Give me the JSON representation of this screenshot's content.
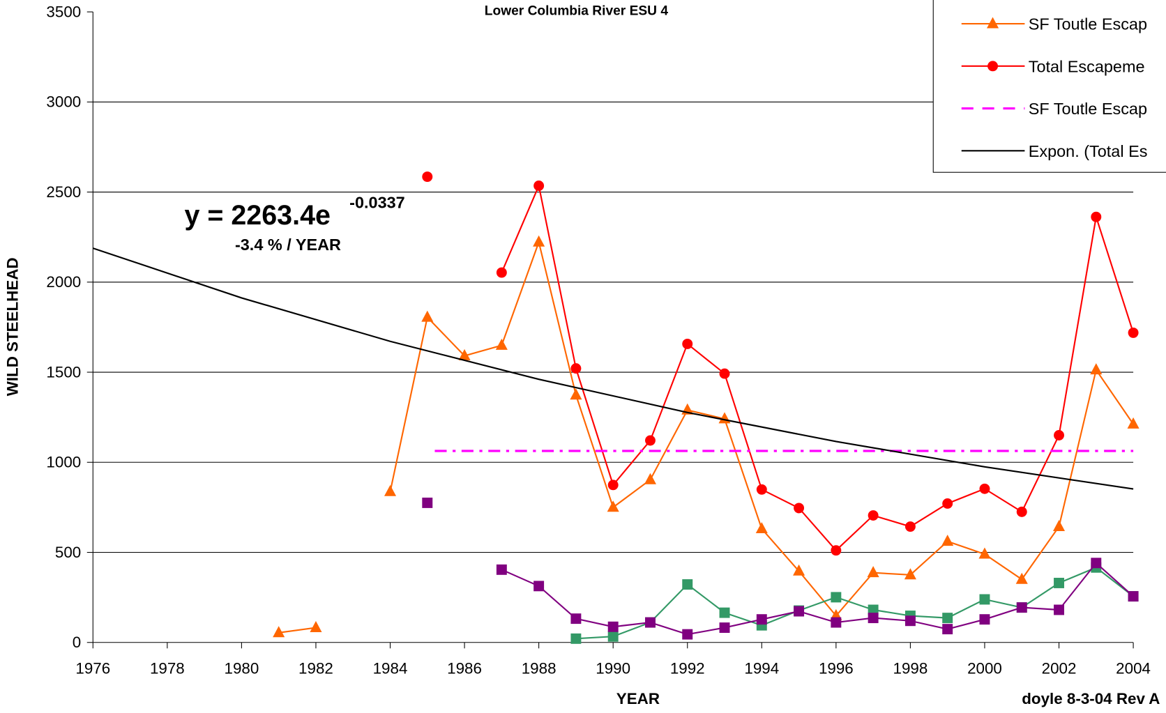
{
  "chart_data": {
    "type": "line",
    "title": "Lower Columbia River ESU 4",
    "xlabel": "YEAR",
    "ylabel": "WILD STEELHEAD",
    "footnote": "doyle 8-3-04 Rev A",
    "annotations": {
      "equation": "y = 2263.4e",
      "exponent": "-0.0337",
      "rate": "-3.4 % / YEAR"
    },
    "x": [
      1981,
      1982,
      1983,
      1984,
      1985,
      1986,
      1987,
      1988,
      1989,
      1990,
      1991,
      1992,
      1993,
      1994,
      1995,
      1996,
      1997,
      1998,
      1999,
      2000,
      2001,
      2002,
      2003,
      2004
    ],
    "series": [
      {
        "name": "SF Toutle Escap",
        "color": "#ff6600",
        "marker": "triangle",
        "values": [
          54,
          82,
          null,
          837,
          1805,
          1591,
          1649,
          2222,
          1373,
          750,
          903,
          1290,
          1241,
          631,
          396,
          148,
          387,
          375,
          561,
          490,
          350,
          643,
          1513,
          1212
        ]
      },
      {
        "name": "Total Escapeme",
        "color": "#ff0000",
        "marker": "circle",
        "values": [
          null,
          null,
          null,
          null,
          2585,
          null,
          2053,
          2535,
          1521,
          874,
          1121,
          1657,
          1492,
          849,
          746,
          511,
          705,
          643,
          771,
          853,
          725,
          1150,
          2362,
          1719
        ]
      },
      {
        "color": "#339966",
        "marker": "square",
        "values": [
          null,
          null,
          null,
          null,
          null,
          null,
          null,
          null,
          21,
          33,
          111,
          322,
          165,
          95,
          177,
          251,
          181,
          148,
          136,
          239,
          194,
          330,
          416,
          256
        ]
      },
      {
        "color": "#800080",
        "marker": "square",
        "values": [
          null,
          null,
          null,
          null,
          775,
          null,
          404,
          313,
          132,
          87,
          111,
          45,
          82,
          128,
          173,
          111,
          136,
          120,
          74,
          128,
          194,
          181,
          441,
          256
        ]
      },
      {
        "name": "SF Toutle Escap",
        "color": "#ff00ff",
        "dash": true,
        "x": [
          1985.2,
          2004
        ],
        "values": [
          1063,
          1063
        ]
      },
      {
        "name": "Expon. (Total Es",
        "color": "#000000",
        "x": [
          1976,
          1980,
          1984,
          1988,
          1992,
          1996,
          2000,
          2004
        ],
        "values": [
          2188.4,
          1912.4,
          1671.3,
          1460.6,
          1276.4,
          1115.4,
          974.7,
          851.7
        ]
      }
    ],
    "legend_order": [
      0,
      1,
      4,
      5
    ],
    "xlim": [
      1976,
      2004
    ],
    "xticks": [
      1976,
      1978,
      1980,
      1982,
      1984,
      1986,
      1988,
      1990,
      1992,
      1994,
      1996,
      1998,
      2000,
      2002,
      2004
    ],
    "ylim": [
      0,
      3500
    ],
    "yticks": [
      0,
      500,
      1000,
      1500,
      2000,
      2500,
      3000,
      3500
    ],
    "grid": true
  }
}
